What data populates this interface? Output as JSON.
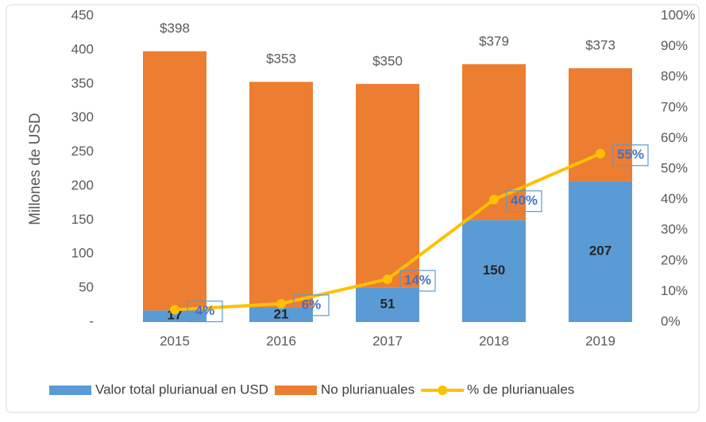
{
  "chart_data": {
    "type": "bar",
    "stacked": true,
    "categories": [
      "2015",
      "2016",
      "2017",
      "2018",
      "2019"
    ],
    "series": [
      {
        "name": "Valor total plurianual en USD",
        "color": "#5b9bd5",
        "values": [
          17,
          21,
          51,
          150,
          207
        ]
      },
      {
        "name": "No plurianuales",
        "color": "#ed7d31",
        "values": [
          381,
          332,
          299,
          229,
          166
        ]
      },
      {
        "name": "% de plurianuales",
        "color": "#ffc000",
        "type": "line",
        "axis": "y2",
        "values": [
          4,
          6,
          14,
          40,
          55
        ],
        "value_labels": [
          "4%",
          "6%",
          "14%",
          "40%",
          "55%"
        ]
      }
    ],
    "totals": [
      398,
      353,
      350,
      379,
      373
    ],
    "total_labels": [
      "$398",
      "$353",
      "$350",
      "$379",
      "$373"
    ],
    "ylabel": "Millones de USD",
    "ylim": [
      0,
      450
    ],
    "yticks": [
      {
        "value": 0,
        "label": "-"
      },
      50,
      100,
      150,
      200,
      250,
      300,
      350,
      400,
      450
    ],
    "y2lim": [
      0,
      100
    ],
    "y2ticks": [
      {
        "value": 0,
        "label": "0%"
      },
      {
        "value": 10,
        "label": "10%"
      },
      {
        "value": 20,
        "label": "20%"
      },
      {
        "value": 30,
        "label": "30%"
      },
      {
        "value": 40,
        "label": "40%"
      },
      {
        "value": 50,
        "label": "50%"
      },
      {
        "value": 60,
        "label": "60%"
      },
      {
        "value": 70,
        "label": "70%"
      },
      {
        "value": 80,
        "label": "80%"
      },
      {
        "value": 90,
        "label": "90%"
      },
      {
        "value": 100,
        "label": "100%"
      }
    ],
    "legend": "bottom"
  }
}
